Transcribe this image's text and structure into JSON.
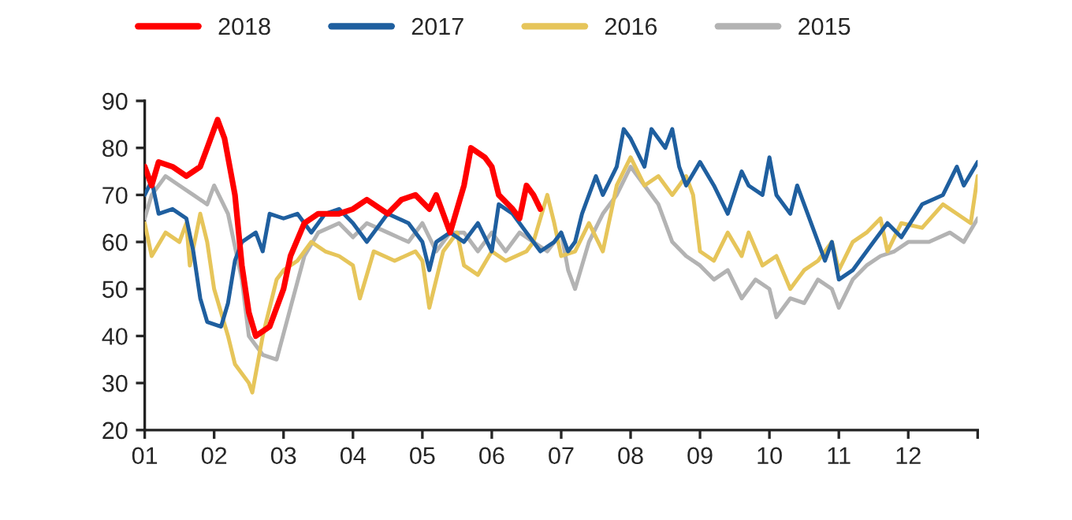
{
  "chart_data": {
    "type": "line",
    "legend": "top",
    "grid": false,
    "marker": "none",
    "line_style": "solid",
    "xlim": [
      1,
      13
    ],
    "ylim": [
      20,
      90
    ],
    "yticks": [
      20,
      30,
      40,
      50,
      60,
      70,
      80,
      90
    ],
    "xticks": [
      {
        "value": 1,
        "label": "01"
      },
      {
        "value": 2,
        "label": "02"
      },
      {
        "value": 3,
        "label": "03"
      },
      {
        "value": 4,
        "label": "04"
      },
      {
        "value": 5,
        "label": "05"
      },
      {
        "value": 6,
        "label": "06"
      },
      {
        "value": 7,
        "label": "07"
      },
      {
        "value": 8,
        "label": "08"
      },
      {
        "value": 9,
        "label": "09"
      },
      {
        "value": 10,
        "label": "10"
      },
      {
        "value": 11,
        "label": "11"
      },
      {
        "value": 12,
        "label": "12"
      },
      {
        "value": 13,
        "label": null
      }
    ],
    "series": [
      {
        "name": "2018",
        "color": "#ff0000",
        "x": [
          1.0,
          1.1,
          1.2,
          1.4,
          1.6,
          1.8,
          1.9,
          2.0,
          2.05,
          2.15,
          2.3,
          2.4,
          2.5,
          2.6,
          2.8,
          3.0,
          3.1,
          3.3,
          3.5,
          3.8,
          4.0,
          4.2,
          4.5,
          4.7,
          4.9,
          5.1,
          5.2,
          5.4,
          5.6,
          5.7,
          5.9,
          6.0,
          6.1,
          6.3,
          6.4,
          6.5,
          6.6,
          6.7
        ],
        "values": [
          76,
          72,
          77,
          76,
          74,
          76,
          80,
          84,
          86,
          82,
          70,
          55,
          45,
          40,
          42,
          50,
          57,
          64,
          66,
          66,
          67,
          69,
          66,
          69,
          70,
          67,
          70,
          62,
          72,
          80,
          78,
          76,
          70,
          67,
          65,
          72,
          70,
          67
        ]
      },
      {
        "name": "2017",
        "color": "#1f5f9f",
        "x": [
          1.0,
          1.1,
          1.2,
          1.4,
          1.6,
          1.7,
          1.8,
          1.9,
          2.1,
          2.2,
          2.3,
          2.4,
          2.6,
          2.7,
          2.8,
          3.0,
          3.2,
          3.4,
          3.6,
          3.8,
          4.0,
          4.2,
          4.5,
          4.8,
          5.0,
          5.1,
          5.2,
          5.4,
          5.6,
          5.8,
          6.0,
          6.1,
          6.3,
          6.5,
          6.7,
          6.9,
          7.0,
          7.1,
          7.2,
          7.3,
          7.5,
          7.6,
          7.8,
          7.9,
          8.0,
          8.2,
          8.3,
          8.5,
          8.6,
          8.7,
          8.8,
          9.0,
          9.2,
          9.4,
          9.6,
          9.7,
          9.9,
          10.0,
          10.1,
          10.3,
          10.4,
          10.6,
          10.8,
          10.9,
          11.0,
          11.2,
          11.5,
          11.7,
          11.9,
          12.2,
          12.5,
          12.7,
          12.8,
          13.0
        ],
        "values": [
          70,
          73,
          66,
          67,
          65,
          58,
          48,
          43,
          42,
          47,
          56,
          60,
          62,
          58,
          66,
          65,
          66,
          62,
          66,
          67,
          64,
          60,
          66,
          64,
          60,
          54,
          60,
          62,
          60,
          64,
          58,
          68,
          66,
          62,
          58,
          60,
          62,
          58,
          60,
          66,
          74,
          70,
          76,
          84,
          82,
          76,
          84,
          80,
          84,
          76,
          72,
          77,
          72,
          66,
          75,
          72,
          70,
          78,
          70,
          66,
          72,
          64,
          56,
          60,
          52,
          54,
          60,
          64,
          61,
          68,
          70,
          76,
          72,
          77
        ]
      },
      {
        "name": "2016",
        "color": "#e6c55a",
        "x": [
          1.0,
          1.1,
          1.3,
          1.5,
          1.6,
          1.65,
          1.8,
          1.9,
          2.0,
          2.2,
          2.3,
          2.5,
          2.55,
          2.7,
          2.9,
          3.0,
          3.2,
          3.4,
          3.6,
          3.8,
          4.0,
          4.1,
          4.3,
          4.6,
          4.9,
          5.0,
          5.1,
          5.3,
          5.5,
          5.6,
          5.8,
          6.0,
          6.2,
          6.5,
          6.6,
          6.8,
          6.9,
          7.0,
          7.2,
          7.4,
          7.6,
          7.8,
          8.0,
          8.2,
          8.4,
          8.6,
          8.8,
          8.9,
          9.0,
          9.2,
          9.4,
          9.6,
          9.7,
          9.9,
          10.1,
          10.3,
          10.5,
          10.7,
          10.9,
          11.0,
          11.2,
          11.4,
          11.6,
          11.7,
          11.9,
          12.2,
          12.5,
          12.7,
          12.9,
          13.0
        ],
        "values": [
          64,
          57,
          62,
          60,
          64,
          55,
          66,
          60,
          50,
          40,
          34,
          30,
          28,
          40,
          52,
          54,
          56,
          60,
          58,
          57,
          55,
          48,
          58,
          56,
          58,
          56,
          46,
          58,
          62,
          55,
          53,
          58,
          56,
          58,
          60,
          70,
          64,
          57,
          58,
          64,
          58,
          72,
          78,
          72,
          74,
          70,
          74,
          70,
          58,
          56,
          62,
          57,
          62,
          55,
          57,
          50,
          54,
          56,
          60,
          54,
          60,
          62,
          65,
          58,
          64,
          63,
          68,
          66,
          64,
          74
        ]
      },
      {
        "name": "2015",
        "color": "#b3b3b3",
        "x": [
          1.0,
          1.1,
          1.3,
          1.5,
          1.7,
          1.9,
          2.0,
          2.2,
          2.4,
          2.5,
          2.7,
          2.9,
          3.1,
          3.3,
          3.5,
          3.8,
          4.0,
          4.2,
          4.5,
          4.8,
          5.0,
          5.2,
          5.4,
          5.6,
          5.8,
          6.0,
          6.2,
          6.4,
          6.6,
          6.8,
          7.0,
          7.1,
          7.2,
          7.4,
          7.6,
          7.8,
          8.0,
          8.2,
          8.4,
          8.6,
          8.8,
          9.0,
          9.2,
          9.4,
          9.6,
          9.8,
          10.0,
          10.1,
          10.3,
          10.5,
          10.7,
          10.9,
          11.0,
          11.2,
          11.4,
          11.6,
          11.8,
          12.0,
          12.3,
          12.6,
          12.8,
          13.0
        ],
        "values": [
          65,
          70,
          74,
          72,
          70,
          68,
          72,
          66,
          52,
          40,
          36,
          35,
          46,
          57,
          62,
          64,
          61,
          64,
          62,
          60,
          64,
          58,
          62,
          62,
          58,
          62,
          58,
          62,
          60,
          58,
          62,
          54,
          50,
          60,
          66,
          70,
          76,
          72,
          68,
          60,
          57,
          55,
          52,
          54,
          48,
          52,
          50,
          44,
          48,
          47,
          52,
          50,
          46,
          52,
          55,
          57,
          58,
          60,
          60,
          62,
          60,
          65
        ]
      }
    ]
  }
}
